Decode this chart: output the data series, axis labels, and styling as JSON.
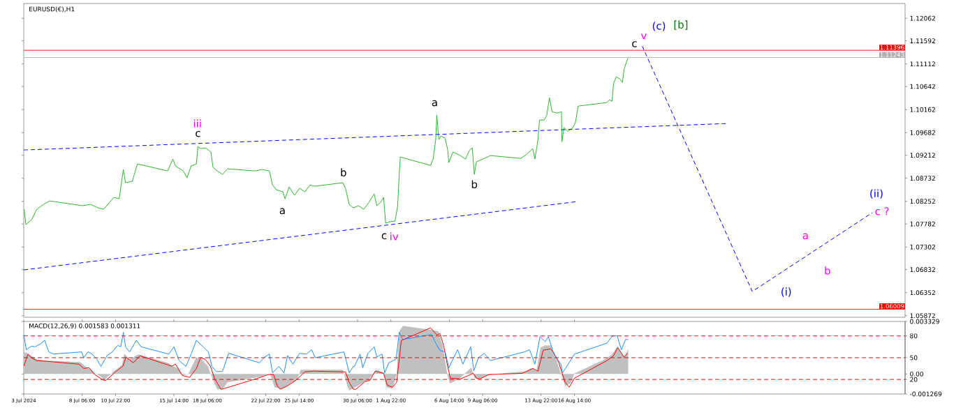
{
  "chart_data": [
    {
      "type": "line",
      "title": "EURUSD(€),H1",
      "xlim": [
        "2024-07-03T14:00",
        "2024-09-12T00:00"
      ],
      "ylim": [
        1.0584,
        1.1237
      ],
      "tick_labels": "y",
      "marker": "none",
      "yticks": [
        1.12062,
        1.11592,
        1.11112,
        1.10642,
        1.10162,
        1.09682,
        1.09212,
        1.08732,
        1.08252,
        1.07782,
        1.07302,
        1.06832,
        1.06352,
        1.05872
      ],
      "series": [
        {
          "color": "#2db82d",
          "x": [
            "2024-07-03T15:00",
            "2024-07-03T18:00",
            "2024-07-04T05:00",
            "2024-07-04T15:00",
            "2024-07-05T06:00",
            "2024-07-05T16:00",
            "2024-07-08T07:00",
            "2024-07-08T22:00",
            "2024-07-09T13:00",
            "2024-07-09T23:00",
            "2024-07-10T19:00",
            "2024-07-11T05:00",
            "2024-07-11T13:00",
            "2024-07-11T17:00",
            "2024-07-12T06:00",
            "2024-07-12T16:00",
            "2024-07-15T02:00",
            "2024-07-15T12:00",
            "2024-07-15T17:00",
            "2024-07-16T08:00",
            "2024-07-16T15:00",
            "2024-07-16T23:00",
            "2024-07-17T09:00",
            "2024-07-17T12:00",
            "2024-07-17T17:00",
            "2024-07-18T03:00",
            "2024-07-18T13:00",
            "2024-07-18T17:00",
            "2024-07-19T01:00",
            "2024-07-19T11:00",
            "2024-07-19T21:00",
            "2024-07-22T02:00",
            "2024-07-22T15:00",
            "2024-07-23T05:00",
            "2024-07-23T11:00",
            "2024-07-23T18:00",
            "2024-07-24T07:00",
            "2024-07-24T11:00",
            "2024-07-24T19:00",
            "2024-07-25T05:00",
            "2024-07-25T15:00",
            "2024-07-26T01:00",
            "2024-07-26T11:00",
            "2024-07-26T19:00",
            "2024-07-29T02:00",
            "2024-07-29T07:00",
            "2024-07-29T14:00",
            "2024-07-29T22:00",
            "2024-07-30T08:00",
            "2024-07-30T18:00",
            "2024-07-31T04:00",
            "2024-07-31T14:00",
            "2024-07-31T19:00",
            "2024-08-01T02:00",
            "2024-08-01T08:00",
            "2024-08-01T12:00",
            "2024-08-01T20:00",
            "2024-08-02T06:00",
            "2024-08-02T11:00",
            "2024-08-02T14:00",
            "2024-08-02T16:00",
            "2024-08-05T02:00",
            "2024-08-05T07:00",
            "2024-08-05T12:00",
            "2024-08-05T14:00",
            "2024-08-05T18:00",
            "2024-08-05T22:00",
            "2024-08-06T06:00",
            "2024-08-06T11:00",
            "2024-08-06T13:00",
            "2024-08-06T21:00",
            "2024-08-07T09:00",
            "2024-08-07T21:00",
            "2024-08-08T05:00",
            "2024-08-08T10:00",
            "2024-08-08T14:00",
            "2024-08-08T18:00",
            "2024-08-09T06:00",
            "2024-08-09T21:00",
            "2024-08-12T07:00",
            "2024-08-12T17:00",
            "2024-08-13T06:00",
            "2024-08-13T10:00",
            "2024-08-13T13:00",
            "2024-08-13T16:00",
            "2024-08-13T19:00",
            "2024-08-14T04:00",
            "2024-08-14T09:00",
            "2024-08-14T14:00",
            "2024-08-14T19:00",
            "2024-08-15T05:00",
            "2024-08-15T13:00",
            "2024-08-15T14:00",
            "2024-08-15T18:00",
            "2024-08-16T01:00",
            "2024-08-16T11:00",
            "2024-08-16T16:00",
            "2024-08-16T21:00",
            "2024-08-19T04:00",
            "2024-08-19T09:00",
            "2024-08-19T14:00",
            "2024-08-19T17:00",
            "2024-08-19T22:00",
            "2024-08-20T05:00",
            "2024-08-20T10:00",
            "2024-08-20T13:00",
            "2024-08-20T18:00",
            "2024-08-20T21:00"
          ],
          "values": [
            1.08087,
            1.07768,
            1.0787,
            1.08087,
            1.08203,
            1.08261,
            1.0816,
            1.08189,
            1.08116,
            1.08087,
            1.08334,
            1.08305,
            1.08914,
            1.08639,
            1.08668,
            1.0903,
            1.08885,
            1.09132,
            1.08987,
            1.08885,
            1.0874,
            1.08987,
            1.0903,
            1.09393,
            1.09349,
            1.09364,
            1.09277,
            1.08958,
            1.08885,
            1.08813,
            1.08929,
            1.08885,
            1.08914,
            1.08885,
            1.08595,
            1.08494,
            1.0845,
            1.08305,
            1.08552,
            1.08378,
            1.08523,
            1.0845,
            1.08595,
            1.08566,
            1.08639,
            1.08523,
            1.08189,
            1.08116,
            1.0816,
            1.08087,
            1.08232,
            1.08407,
            1.0816,
            1.08232,
            1.08334,
            1.07797,
            1.07826,
            1.07841,
            1.0816,
            1.08813,
            1.09175,
            1.09001,
            1.09132,
            1.09538,
            1.10046,
            1.09538,
            1.09611,
            1.09567,
            1.0932,
            1.09059,
            1.09277,
            1.09219,
            1.09132,
            1.0932,
            1.09364,
            1.08813,
            1.09074,
            1.09132,
            1.09204,
            1.09146,
            1.09219,
            1.09349,
            1.09132,
            1.0932,
            1.09538,
            1.09944,
            1.09944,
            1.10046,
            1.10408,
            1.10118,
            1.10089,
            1.10118,
            1.09494,
            1.09785,
            1.09712,
            1.09785,
            1.09901,
            1.10234,
            1.10307,
            1.10365,
            1.10336,
            1.10698,
            1.10844,
            1.108,
            1.10727,
            1.10989,
            1.11163,
            1.11243
          ]
        },
        {
          "color": "#0000ff",
          "line_style": "dashed",
          "x": [
            "2024-07-03T14:00",
            "2024-08-28T19:00"
          ],
          "values": [
            1.0932,
            1.09872
          ]
        },
        {
          "color": "#0000ff",
          "line_style": "dashed",
          "x": [
            "2024-07-03T14:00",
            "2024-08-16T19:00"
          ],
          "values": [
            1.06825,
            1.08247
          ]
        },
        {
          "color": "#0000ff",
          "line_style": "dashed",
          "x": [
            "2024-08-22T00:00",
            "2024-08-30T19:00",
            "2024-09-09T09:00"
          ],
          "values": [
            1.11482,
            1.06376,
            1.08015
          ]
        }
      ],
      "ref_lines": [
        {
          "axis": "y",
          "value": 1.11396,
          "label": "1.11396",
          "color": "#ff0000"
        },
        {
          "axis": "y",
          "value": 1.11243,
          "label": "1.11243",
          "color": "#b0b0b0"
        },
        {
          "axis": "y",
          "value": 1.06009,
          "label": "1.06009",
          "color": "#ff0000"
        }
      ],
      "annotations": [
        "iii",
        "c",
        "a",
        "b",
        "c",
        "iv",
        "a",
        "b",
        "c",
        "v",
        "(c)",
        "[b]",
        "(i)",
        "a",
        "b",
        "(ii)",
        "c ?"
      ]
    },
    {
      "type": "line",
      "title": "MACD(12,26,9) 0.001583 0.001311",
      "xlim": [
        "2024-07-03T14:00",
        "2024-09-12T00:00"
      ],
      "marker": "none",
      "xticks": [
        {
          "value": "2024-07-03T14:00",
          "label": "3 Jul 2024"
        },
        {
          "value": "2024-07-08T06:00",
          "label": "8 Jul 06:00"
        },
        {
          "value": "2024-07-10T22:00",
          "label": "10 Jul 22:00"
        },
        {
          "value": "2024-07-15T14:00",
          "label": "15 Jul 14:00"
        },
        {
          "value": "2024-07-18T06:00",
          "label": "18 Jul 06:00"
        },
        {
          "value": "2024-07-22T22:00",
          "label": "22 Jul 22:00"
        },
        {
          "value": "2024-07-25T14:00",
          "label": "25 Jul 14:00"
        },
        {
          "value": "2024-07-30T06:00",
          "label": "30 Jul 06:00"
        },
        {
          "value": "2024-08-01T22:00",
          "label": "1 Aug 22:00"
        },
        {
          "value": "2024-08-06T14:00",
          "label": "6 Aug 14:00"
        },
        {
          "value": "2024-08-09T06:00",
          "label": "9 Aug 06:00"
        },
        {
          "value": "2024-08-13T22:00",
          "label": "13 Aug 22:00"
        },
        {
          "value": "2024-08-16T14:00",
          "label": "16 Aug 14:00"
        }
      ],
      "ylim": [
        -0.001269,
        0.003329
      ],
      "yticks": [
        0.003329,
        {
          "value": 0,
          "label": "0.00"
        },
        -0.001269
      ],
      "y2lim": [
        0,
        100
      ],
      "y2ticks": [
        80,
        50,
        20
      ],
      "series": [
        {
          "type": "area",
          "color": "#c0c0c0",
          "x": [
            "2024-07-03T14:00",
            "2024-07-03T21:00",
            "2024-07-04T15:00",
            "2024-07-05T11:00",
            "2024-07-08T02:00",
            "2024-07-08T12:00",
            "2024-07-08T22:00",
            "2024-07-09T08:00",
            "2024-07-09T18:00",
            "2024-07-10T01:00",
            "2024-07-10T07:00",
            "2024-07-10T19:00",
            "2024-07-11T10:00",
            "2024-07-11T15:00",
            "2024-07-12T01:00",
            "2024-07-12T18:00",
            "2024-07-15T02:00",
            "2024-07-15T12:00",
            "2024-07-15T22:00",
            "2024-07-16T06:00",
            "2024-07-16T18:00",
            "2024-07-17T09:00",
            "2024-07-17T19:00",
            "2024-07-18T07:00",
            "2024-07-18T17:00",
            "2024-07-19T01:00",
            "2024-07-19T11:00",
            "2024-07-19T21:00",
            "2024-07-22T12:00",
            "2024-07-23T06:00",
            "2024-07-23T15:00",
            "2024-07-24T04:00",
            "2024-07-24T14:00",
            "2024-07-25T00:00",
            "2024-07-25T10:00",
            "2024-07-25T17:00",
            "2024-07-26T11:00",
            "2024-07-29T02:00",
            "2024-07-29T10:00",
            "2024-07-29T14:00",
            "2024-07-30T06:00",
            "2024-07-31T02:00",
            "2024-07-31T12:00",
            "2024-07-31T17:00",
            "2024-08-01T08:00",
            "2024-08-01T13:00",
            "2024-08-02T01:00",
            "2024-08-02T09:00",
            "2024-08-02T14:00",
            "2024-08-02T21:00",
            "2024-08-05T07:00",
            "2024-08-05T17:00",
            "2024-08-06T01:00",
            "2024-08-06T10:00",
            "2024-08-06T15:00",
            "2024-08-07T09:00",
            "2024-08-08T08:00",
            "2024-08-08T15:00",
            "2024-08-09T01:00",
            "2024-08-09T21:00",
            "2024-08-12T17:00",
            "2024-08-13T06:00",
            "2024-08-13T13:00",
            "2024-08-13T21:00",
            "2024-08-14T06:00",
            "2024-08-14T16:00",
            "2024-08-15T02:00",
            "2024-08-15T12:00",
            "2024-08-15T20:00",
            "2024-08-16T06:00",
            "2024-08-16T14:00",
            "2024-08-19T00:00",
            "2024-08-19T14:00",
            "2024-08-20T00:00",
            "2024-08-20T13:00",
            "2024-08-20T21:00"
          ],
          "values": [
            0.00137,
            0.00133,
            0.00093,
            0.00084,
            0.00075,
            0.00049,
            0.00027,
            4e-05,
            -0.00018,
            -0.0004,
            -0.00018,
            0.00018,
            0.00057,
            0.00128,
            0.00093,
            0.00124,
            0.00071,
            0.00049,
            0.00035,
            -9e-05,
            4e-05,
            0.00106,
            0.00093,
            0.00049,
            -0.0004,
            -0.00097,
            -0.00097,
            -0.00053,
            -0.00018,
            4e-05,
            -0.00084,
            -0.00097,
            -0.0008,
            -0.00053,
            -0.0004,
            0.00027,
            0.00027,
            0.00027,
            -0.00071,
            -0.00106,
            -0.00075,
            -0.0004,
            -4e-05,
            0.00027,
            9e-05,
            -0.00084,
            -0.00093,
            -4e-05,
            0.0027,
            0.00305,
            0.00278,
            0.0027,
            0.00181,
            4e-05,
            -0.00062,
            -0.00031,
            0.0004,
            -0.00027,
            -0.00031,
            -4e-05,
            0.00018,
            0.00035,
            0.00018,
            0.00168,
            0.00181,
            0.00181,
            0.00102,
            4e-05,
            -0.00075,
            -0.00062,
            4e-05,
            0.00093,
            0.00124,
            0.00172,
            0.00106,
            0.00158
          ]
        },
        {
          "type": "line",
          "color": "#ff0000",
          "x": [
            "2024-07-03T14:00",
            "2024-07-03T22:00",
            "2024-07-04T05:00",
            "2024-07-04T15:00",
            "2024-07-05T11:00",
            "2024-07-08T00:00",
            "2024-07-08T09:00",
            "2024-07-08T19:00",
            "2024-07-09T06:00",
            "2024-07-09T23:00",
            "2024-07-10T04:00",
            "2024-07-10T22:00",
            "2024-07-11T12:00",
            "2024-07-11T18:00",
            "2024-07-12T08:00",
            "2024-07-12T21:00",
            "2024-07-15T10:00",
            "2024-07-15T17:00",
            "2024-07-16T06:00",
            "2024-07-16T20:00",
            "2024-07-17T09:00",
            "2024-07-17T17:00",
            "2024-07-18T02:00",
            "2024-07-18T12:00",
            "2024-07-18T20:00",
            "2024-07-19T08:00",
            "2024-07-19T14:00",
            "2024-07-22T07:00",
            "2024-07-23T03:00",
            "2024-07-23T13:00",
            "2024-07-23T20:00",
            "2024-07-24T02:00",
            "2024-07-24T16:00",
            "2024-07-25T08:00",
            "2024-07-26T01:00",
            "2024-07-26T18:00",
            "2024-07-29T07:00",
            "2024-07-29T14:00",
            "2024-07-29T22:00",
            "2024-07-30T03:00",
            "2024-07-30T20:00",
            "2024-07-31T06:00",
            "2024-07-31T16:00",
            "2024-08-01T08:00",
            "2024-08-01T15:00",
            "2024-08-02T01:00",
            "2024-08-02T09:00",
            "2024-08-02T18:00",
            "2024-08-05T02:00",
            "2024-08-05T14:00",
            "2024-08-05T20:00",
            "2024-08-06T03:00",
            "2024-08-06T10:00",
            "2024-08-06T16:00",
            "2024-08-07T12:00",
            "2024-08-08T12:00",
            "2024-08-08T18:00",
            "2024-08-09T01:00",
            "2024-08-09T18:00",
            "2024-08-12T10:00",
            "2024-08-13T06:00",
            "2024-08-13T16:00",
            "2024-08-14T02:00",
            "2024-08-14T16:00",
            "2024-08-14T22:00",
            "2024-08-15T08:00",
            "2024-08-15T20:00",
            "2024-08-16T04:00",
            "2024-08-16T14:00",
            "2024-08-19T04:00",
            "2024-08-19T17:00",
            "2024-08-20T01:00",
            "2024-08-20T13:00",
            "2024-08-20T20:00"
          ],
          "values": [
            0.00049,
            0.00124,
            0.00102,
            0.00084,
            0.0008,
            0.00062,
            0.00035,
            0.0004,
            -4e-05,
            -0.0004,
            -0.0004,
            0.00013,
            0.00049,
            0.00106,
            0.00071,
            0.00115,
            0.00049,
            0.00062,
            -9e-05,
            -0.00022,
            0.00035,
            0.00102,
            0.00093,
            0.00049,
            -0.00031,
            -0.00097,
            -0.00093,
            -0.00027,
            -4e-05,
            -4e-05,
            -0.00075,
            -0.00097,
            -0.00075,
            -0.0004,
            0.00013,
            0.00018,
            0.00013,
            -0.00053,
            -0.00097,
            -0.00097,
            -0.00049,
            -0.0004,
            0.00018,
            4e-05,
            -0.00071,
            -0.00084,
            -0.00053,
            0.00212,
            0.00292,
            0.00248,
            0.00256,
            0.00181,
            0.00062,
            -0.00027,
            -0.00031,
            4e-05,
            -0.00027,
            -0.00031,
            -4e-05,
            4e-05,
            0.00035,
            0.00018,
            0.0015,
            0.00159,
            0.00137,
            0.00071,
            -0.00053,
            -0.00084,
            -0.00027,
            0.00084,
            0.00115,
            0.00168,
            0.00106,
            0.00131
          ]
        },
        {
          "type": "line",
          "axis": "y2",
          "color": "#1e90ff",
          "x": [
            "2024-07-03T14:00",
            "2024-07-03T19:00",
            "2024-07-04T05:00",
            "2024-07-04T12:00",
            "2024-07-04T22:00",
            "2024-07-05T06:00",
            "2024-07-05T14:00",
            "2024-07-05T23:00",
            "2024-07-08T05:00",
            "2024-07-08T09:00",
            "2024-07-08T17:00",
            "2024-07-09T01:00",
            "2024-07-09T10:00",
            "2024-07-09T18:00",
            "2024-07-10T06:00",
            "2024-07-10T16:00",
            "2024-07-11T02:00",
            "2024-07-11T08:00",
            "2024-07-11T13:00",
            "2024-07-11T17:00",
            "2024-07-12T01:00",
            "2024-07-12T14:00",
            "2024-07-12T23:00",
            "2024-07-15T04:00",
            "2024-07-15T14:00",
            "2024-07-16T00:00",
            "2024-07-16T13:00",
            "2024-07-16T23:00",
            "2024-07-17T09:00",
            "2024-07-17T22:00",
            "2024-07-18T08:00",
            "2024-07-18T15:00",
            "2024-07-18T23:00",
            "2024-07-19T11:00",
            "2024-07-19T23:00",
            "2024-07-22T10:00",
            "2024-07-22T20:00",
            "2024-07-23T05:00",
            "2024-07-23T11:00",
            "2024-07-23T23:00",
            "2024-07-24T09:00",
            "2024-07-24T16:00",
            "2024-07-25T02:00",
            "2024-07-25T15:00",
            "2024-07-26T04:00",
            "2024-07-26T14:00",
            "2024-07-26T21:00",
            "2024-07-29T04:00",
            "2024-07-29T10:00",
            "2024-07-29T14:00",
            "2024-07-29T22:00",
            "2024-07-30T00:00",
            "2024-07-30T11:00",
            "2024-07-30T16:00",
            "2024-07-31T02:00",
            "2024-07-31T14:00",
            "2024-07-31T19:00",
            "2024-08-01T05:00",
            "2024-08-01T10:00",
            "2024-08-01T18:00",
            "2024-08-02T08:00",
            "2024-08-02T14:00",
            "2024-08-02T21:00",
            "2024-08-05T04:00",
            "2024-08-05T12:00",
            "2024-08-05T20:00",
            "2024-08-06T06:00",
            "2024-08-06T13:00",
            "2024-08-07T06:00",
            "2024-08-07T16:00",
            "2024-08-08T07:00",
            "2024-08-08T13:00",
            "2024-08-08T22:00",
            "2024-08-09T09:00",
            "2024-08-09T21:00",
            "2024-08-12T14:00",
            "2024-08-13T00:00",
            "2024-08-13T10:00",
            "2024-08-13T20:00",
            "2024-08-14T06:00",
            "2024-08-14T12:00",
            "2024-08-14T22:00",
            "2024-08-15T12:00",
            "2024-08-15T15:00",
            "2024-08-16T01:00",
            "2024-08-16T14:00",
            "2024-08-19T04:00",
            "2024-08-19T15:00",
            "2024-08-20T00:00",
            "2024-08-20T08:00",
            "2024-08-20T16:00",
            "2024-08-20T21:00"
          ],
          "values": [
            82,
            61,
            66,
            65,
            69,
            74,
            58,
            55,
            58,
            50,
            58,
            55,
            48,
            38,
            53,
            58,
            67,
            65,
            85,
            65,
            58,
            74,
            65,
            55,
            65,
            46,
            38,
            55,
            74,
            65,
            58,
            38,
            31,
            31,
            56,
            43,
            51,
            55,
            29,
            38,
            29,
            53,
            41,
            56,
            55,
            61,
            50,
            58,
            41,
            29,
            38,
            38,
            55,
            36,
            56,
            65,
            51,
            55,
            29,
            43,
            48,
            85,
            75,
            82,
            70,
            60,
            58,
            36,
            61,
            41,
            65,
            32,
            50,
            56,
            46,
            58,
            61,
            41,
            79,
            72,
            79,
            56,
            41,
            29,
            40,
            55,
            70,
            80,
            80,
            61,
            75,
            75
          ]
        }
      ],
      "ref_lines": [
        {
          "axis": "y2",
          "value": 80,
          "color": "#ff0000",
          "line_style": "dashed"
        },
        {
          "axis": "y2",
          "value": 50,
          "color": "#ff0000",
          "line_style": "dashed"
        },
        {
          "axis": "y2",
          "value": 20,
          "color": "#ff0000",
          "line_style": "dashed"
        }
      ]
    }
  ]
}
